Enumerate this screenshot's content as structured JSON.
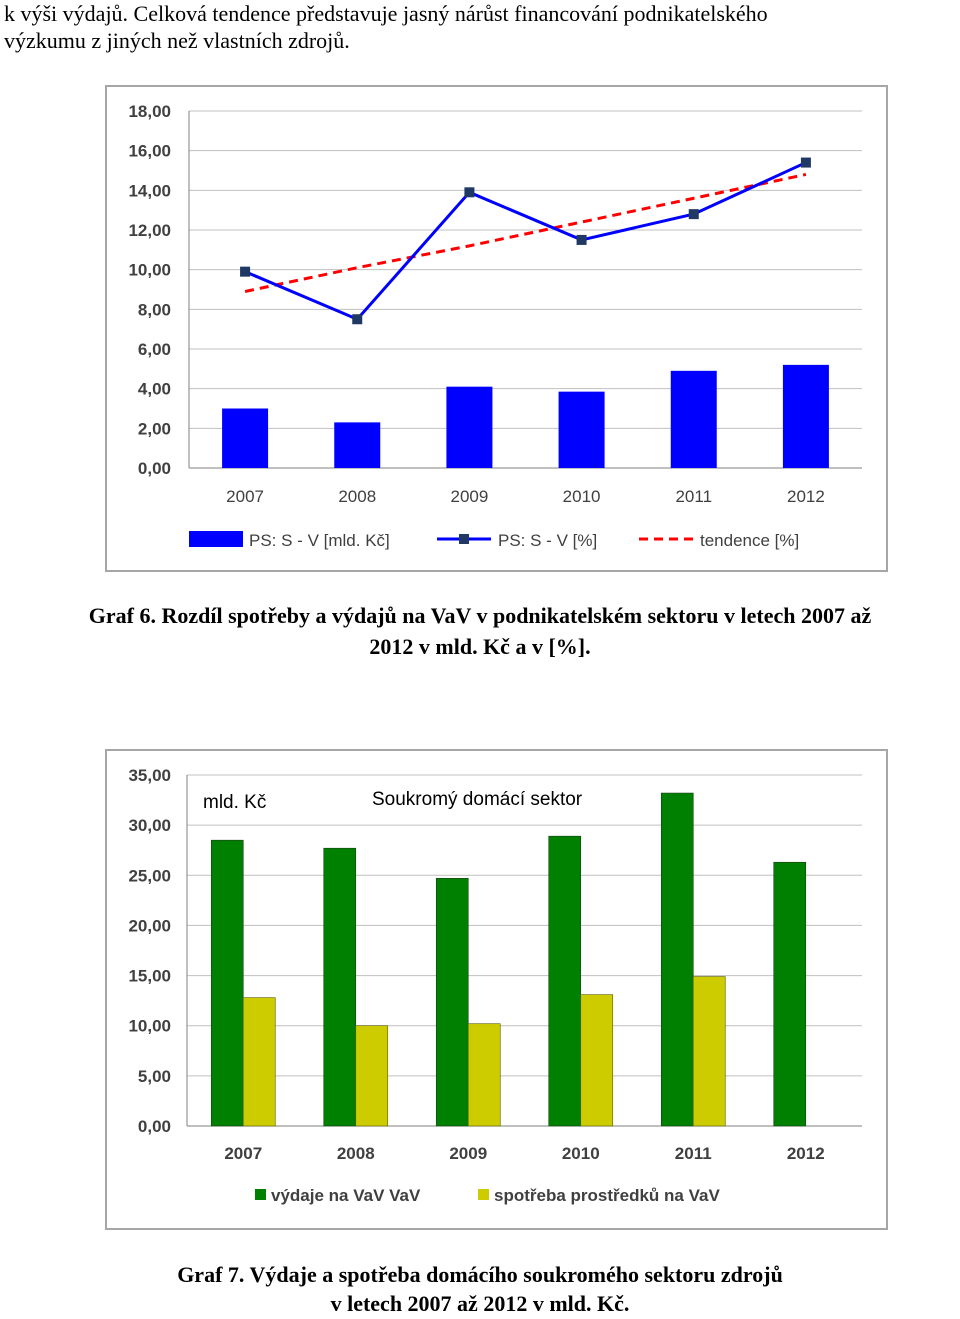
{
  "intro_text": {
    "line1": "k výši výdajů. Celková tendence představuje jasný nárůst financování podnikatelského",
    "line2": "výzkumu z jiných než vlastních zdrojů."
  },
  "captions": {
    "graf6_line1": "Graf 6. Rozdíl spotřeby a výdajů na VaV v podnikatelském sektoru v letech 2007 až",
    "graf6_line2": "2012 v mld. Kč a v [%].",
    "graf7_line1": "Graf 7. Výdaje a spotřeba domácího soukromého sektoru zdrojů",
    "graf7_line2": "v letech 2007 až 2012 v mld. Kč."
  },
  "colors": {
    "blue": "#0000ff",
    "navy": "#1f3864",
    "red_dash": "#ff0000",
    "green": "#008000",
    "yellow": "#cccc00",
    "grid": "#c0c0c0"
  },
  "chart_data": [
    {
      "type": "bar",
      "categories": [
        "2007",
        "2008",
        "2009",
        "2010",
        "2011",
        "2012"
      ],
      "ylim": [
        0,
        18
      ],
      "yticks": [
        "0,00",
        "2,00",
        "4,00",
        "6,00",
        "8,00",
        "10,00",
        "12,00",
        "14,00",
        "16,00",
        "18,00"
      ],
      "grid": true,
      "legend_position": "bottom",
      "series": [
        {
          "name": "PS: S - V [mld. Kč]",
          "kind": "bar",
          "values": [
            3.0,
            2.3,
            4.1,
            3.85,
            4.9,
            5.2
          ]
        },
        {
          "name": "PS: S - V [%]",
          "kind": "line",
          "marker": "square",
          "values": [
            9.9,
            7.5,
            13.9,
            11.5,
            12.8,
            15.4
          ]
        },
        {
          "name": "tendence [%]",
          "kind": "trendline",
          "dashed": true,
          "values": [
            8.9,
            10.1,
            11.2,
            12.4,
            13.6,
            14.8
          ]
        }
      ]
    },
    {
      "type": "bar",
      "title": "Soukromý domácí sektor",
      "unit_label": "mld. Kč",
      "categories": [
        "2007",
        "2008",
        "2009",
        "2010",
        "2011",
        "2012"
      ],
      "ylim": [
        0,
        35
      ],
      "yticks": [
        "0,00",
        "5,00",
        "10,00",
        "15,00",
        "20,00",
        "25,00",
        "30,00",
        "35,00"
      ],
      "grid": true,
      "legend_position": "bottom",
      "series": [
        {
          "name": "výdaje na VaV VaV",
          "values": [
            28.5,
            27.7,
            24.7,
            28.9,
            33.2,
            26.3
          ]
        },
        {
          "name": "spotřeba prostředků na VaV",
          "values": [
            12.8,
            10.0,
            10.2,
            13.1,
            14.9,
            null
          ]
        }
      ]
    }
  ]
}
